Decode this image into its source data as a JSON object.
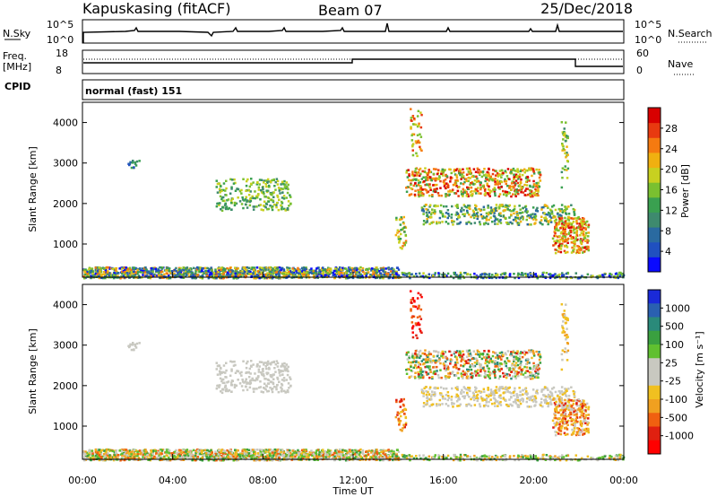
{
  "header": {
    "station": "Kapuskasing (fitACF)",
    "beam": "Beam 07",
    "date": "25/Dec/2018"
  },
  "noise_panel": {
    "left_label": "N.Sky",
    "right_label": "N.Search",
    "y_ticks": [
      "10^5",
      "10^0"
    ]
  },
  "freq_panel": {
    "left_label_line1": "Freq.",
    "left_label_line2": "[MHz]",
    "left_ticks": [
      "18",
      "8"
    ],
    "right_label": "Nave",
    "right_ticks": [
      "60",
      "0"
    ]
  },
  "cpid_panel": {
    "label": "CPID",
    "text": "normal (fast) 151"
  },
  "chart_data": [
    {
      "type": "heatmap",
      "name": "power",
      "ylabel": "Slant Range [km]",
      "y_ticks": [
        "1000",
        "2000",
        "3000",
        "4000"
      ],
      "ylim": [
        180,
        4500
      ],
      "xlim_hours": [
        0,
        24
      ],
      "colorbar": {
        "label": "Power [dB]",
        "ticks": [
          "4",
          "8",
          "12",
          "16",
          "20",
          "24",
          "28"
        ],
        "range": [
          0,
          32
        ],
        "colors": [
          "#0a0aff",
          "#2050c0",
          "#2a6aa0",
          "#3e8a6e",
          "#3aa050",
          "#7ac030",
          "#c8d020",
          "#f0b010",
          "#f57a10",
          "#e83a10",
          "#d80000"
        ]
      }
    },
    {
      "type": "heatmap",
      "name": "velocity",
      "ylabel": "Slant Range [km]",
      "y_ticks": [
        "1000",
        "2000",
        "3000",
        "4000"
      ],
      "ylim": [
        180,
        4500
      ],
      "xlim_hours": [
        0,
        24
      ],
      "colorbar": {
        "label": "Velocity [m s⁻¹]",
        "ticks": [
          "1000",
          "500",
          "100",
          "25",
          "-25",
          "-100",
          "-500",
          "-1000"
        ],
        "colors": [
          "#1a2ad8",
          "#2a60b0",
          "#2a8a7a",
          "#3aa040",
          "#60c030",
          "#c8c8c0",
          "#c8c8c0",
          "#f0c020",
          "#f0a020",
          "#f06010",
          "#e02010",
          "#ff0000"
        ]
      }
    }
  ],
  "x_axis": {
    "label": "Time UT",
    "ticks": [
      "00:00",
      "04:00",
      "08:00",
      "12:00",
      "16:00",
      "20:00",
      "00:00"
    ]
  }
}
